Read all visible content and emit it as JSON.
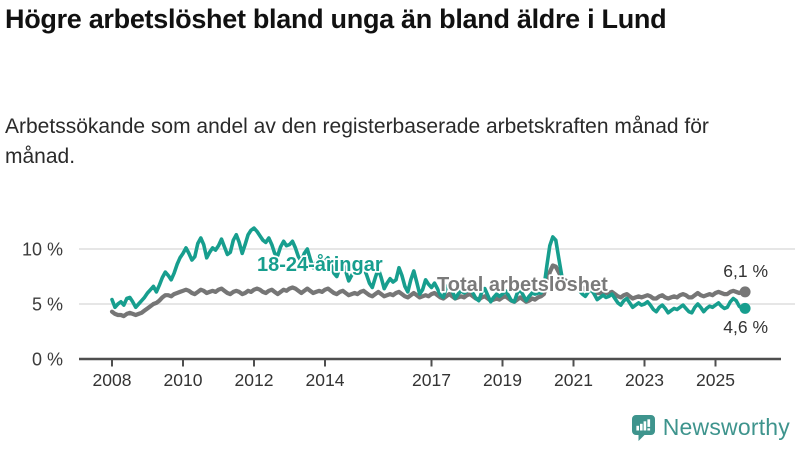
{
  "header": {
    "title": "Högre arbetslöshet bland unga än bland äldre i Lund",
    "subtitle": "Arbetssökande som andel av den registerbaserade arbetskraften månad för månad."
  },
  "colors": {
    "young_line": "#179e8e",
    "total_line": "#767676",
    "total_label": "#7a7a7a",
    "grid": "#d8d8d8",
    "axis": "#4f4f4f",
    "end_label_text": "#333333",
    "brand_teal": "#3e948d"
  },
  "chart_data": {
    "type": "line",
    "title": "Högre arbetslöshet bland unga än bland äldre i Lund",
    "xlabel": "",
    "ylabel": "",
    "x_unit": "monthly",
    "x_start": "2008-01",
    "x_end": "2025-11",
    "x_tick_years": [
      2008,
      2010,
      2012,
      2014,
      2017,
      2019,
      2021,
      2023,
      2025
    ],
    "y_ticks": [
      {
        "value": 0,
        "label": "0 %"
      },
      {
        "value": 5,
        "label": "5 %"
      },
      {
        "value": 10,
        "label": "10 %"
      }
    ],
    "ylim": [
      0,
      13
    ],
    "grid": "horizontal",
    "legend_position": "inline-labels",
    "series": [
      {
        "name": "18-24-åringar",
        "color": "#179e8e",
        "end_label": "4,6 %",
        "end_value": 4.6,
        "values": [
          5.4,
          4.7,
          5.0,
          5.2,
          4.9,
          5.5,
          5.6,
          5.2,
          4.7,
          5.0,
          5.3,
          5.6,
          6.0,
          6.3,
          6.6,
          6.1,
          6.7,
          7.4,
          7.9,
          7.6,
          7.2,
          7.8,
          8.6,
          9.2,
          9.6,
          10.1,
          9.6,
          9.0,
          9.3,
          10.5,
          11.0,
          10.4,
          9.2,
          9.7,
          10.1,
          9.9,
          10.3,
          10.9,
          10.2,
          9.5,
          9.7,
          10.8,
          11.3,
          10.6,
          9.6,
          10.4,
          11.3,
          11.7,
          11.9,
          11.6,
          11.2,
          10.8,
          10.6,
          11.0,
          10.4,
          9.6,
          9.4,
          10.2,
          10.7,
          10.3,
          10.4,
          10.7,
          10.1,
          9.3,
          8.9,
          9.6,
          10.0,
          9.1,
          8.3,
          8.8,
          9.1,
          8.7,
          8.9,
          9.2,
          8.6,
          7.8,
          7.5,
          8.3,
          8.7,
          8.0,
          7.1,
          7.6,
          8.0,
          7.7,
          7.9,
          8.3,
          7.7,
          6.9,
          6.5,
          7.4,
          8.2,
          7.4,
          6.4,
          6.9,
          7.3,
          7.0,
          7.2,
          8.3,
          7.6,
          6.6,
          6.1,
          7.2,
          8.0,
          7.0,
          5.9,
          6.3,
          7.2,
          6.8,
          6.5,
          6.9,
          6.4,
          5.8,
          5.6,
          6.5,
          6.8,
          6.2,
          5.5,
          5.9,
          6.2,
          6.0,
          6.2,
          6.5,
          6.0,
          5.5,
          5.3,
          6.1,
          6.4,
          5.8,
          5.2,
          5.6,
          5.9,
          5.7,
          5.9,
          6.2,
          5.8,
          5.3,
          5.2,
          6.0,
          6.3,
          5.8,
          5.3,
          5.7,
          6.0,
          5.9,
          6.0,
          6.0,
          6.5,
          8.5,
          10.3,
          11.1,
          10.8,
          9.2,
          7.6,
          7.0,
          6.8,
          6.9,
          6.3,
          6.5,
          6.2,
          5.9,
          5.7,
          6.1,
          6.3,
          5.9,
          5.4,
          5.6,
          5.8,
          5.6,
          5.7,
          5.9,
          5.5,
          5.1,
          4.9,
          5.3,
          5.5,
          5.1,
          4.7,
          4.9,
          5.1,
          4.9,
          5.0,
          5.2,
          4.9,
          4.5,
          4.3,
          4.7,
          4.9,
          4.6,
          4.2,
          4.4,
          4.6,
          4.5,
          4.7,
          4.9,
          4.6,
          4.3,
          4.2,
          4.7,
          5.0,
          4.7,
          4.3,
          4.6,
          4.8,
          4.7,
          4.9,
          5.1,
          4.8,
          4.6,
          4.7,
          5.2,
          5.5,
          5.3,
          4.8,
          4.6,
          4.6
        ]
      },
      {
        "name": "Total arbetslöshet",
        "color": "#767676",
        "end_label": "6,1 %",
        "end_value": 6.1,
        "values": [
          4.3,
          4.1,
          4.0,
          4.0,
          3.9,
          4.1,
          4.2,
          4.1,
          4.0,
          4.1,
          4.2,
          4.4,
          4.6,
          4.8,
          5.0,
          5.1,
          5.3,
          5.6,
          5.8,
          5.8,
          5.7,
          5.9,
          6.0,
          6.1,
          6.2,
          6.3,
          6.2,
          6.0,
          5.9,
          6.1,
          6.3,
          6.2,
          6.0,
          6.1,
          6.2,
          6.1,
          6.3,
          6.4,
          6.2,
          6.0,
          5.9,
          6.1,
          6.2,
          6.1,
          5.9,
          6.0,
          6.2,
          6.1,
          6.3,
          6.4,
          6.3,
          6.1,
          6.0,
          6.2,
          6.3,
          6.1,
          5.9,
          6.1,
          6.3,
          6.2,
          6.4,
          6.5,
          6.4,
          6.2,
          6.0,
          6.2,
          6.4,
          6.2,
          6.0,
          6.1,
          6.2,
          6.1,
          6.3,
          6.4,
          6.2,
          6.0,
          5.9,
          6.1,
          6.2,
          6.0,
          5.8,
          5.9,
          6.0,
          5.9,
          6.1,
          6.2,
          6.0,
          5.8,
          5.7,
          5.9,
          6.1,
          5.9,
          5.7,
          5.8,
          5.9,
          5.8,
          6.0,
          6.1,
          5.9,
          5.7,
          5.6,
          5.8,
          6.0,
          5.8,
          5.6,
          5.7,
          5.8,
          5.7,
          5.9,
          6.0,
          5.8,
          5.6,
          5.5,
          5.7,
          5.9,
          5.7,
          5.5,
          5.6,
          5.7,
          5.6,
          5.8,
          5.9,
          5.7,
          5.5,
          5.4,
          5.6,
          5.7,
          5.5,
          5.3,
          5.4,
          5.5,
          5.4,
          5.6,
          5.7,
          5.5,
          5.3,
          5.2,
          5.4,
          5.6,
          5.4,
          5.2,
          5.3,
          5.5,
          5.4,
          5.6,
          5.7,
          5.9,
          6.9,
          7.9,
          8.5,
          8.4,
          7.9,
          7.4,
          7.2,
          7.0,
          6.9,
          6.8,
          6.9,
          6.7,
          6.5,
          6.3,
          6.4,
          6.5,
          6.3,
          6.0,
          6.0,
          6.1,
          6.0,
          6.0,
          6.1,
          5.9,
          5.7,
          5.6,
          5.8,
          5.9,
          5.7,
          5.5,
          5.6,
          5.7,
          5.6,
          5.7,
          5.8,
          5.7,
          5.5,
          5.5,
          5.7,
          5.8,
          5.6,
          5.5,
          5.6,
          5.7,
          5.6,
          5.8,
          5.9,
          5.8,
          5.6,
          5.6,
          5.8,
          6.0,
          5.8,
          5.7,
          5.8,
          5.9,
          5.8,
          6.0,
          6.1,
          6.0,
          5.9,
          5.9,
          6.1,
          6.2,
          6.1,
          6.0,
          6.1,
          6.1
        ]
      }
    ]
  },
  "footer": {
    "brand": "Newsworthy"
  }
}
